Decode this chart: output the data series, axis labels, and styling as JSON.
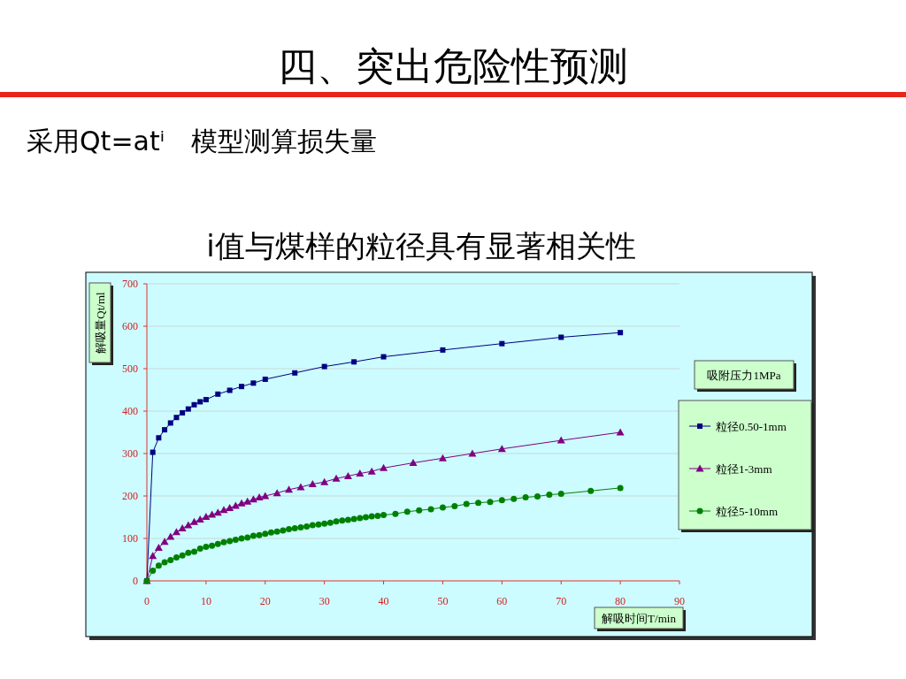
{
  "chart_data": {
    "type": "line",
    "title": "四、突出危险性预测",
    "subtitle": "采用Qt=atⁱ　模型测算损失量",
    "annotations": [
      "i值与煤样的粒径具有显著相关性"
    ],
    "xlabel": "解吸时间T/min",
    "ylabel": "解吸量Qt/ml",
    "legend_title": "吸附压力1MPa",
    "xlim": [
      0,
      90
    ],
    "ylim": [
      0,
      700
    ],
    "xticks": [
      0,
      10,
      20,
      30,
      40,
      50,
      60,
      70,
      80,
      90
    ],
    "yticks": [
      0,
      100,
      200,
      300,
      400,
      500,
      600,
      700
    ],
    "grid": "y",
    "legend": "right",
    "line_style": "solid",
    "series": [
      {
        "name": "粒径0.50-1mm",
        "color": "#000080",
        "marker": "square",
        "x": [
          0,
          1,
          2,
          3,
          4,
          5,
          6,
          7,
          8,
          9,
          10,
          12,
          14,
          16,
          18,
          20,
          25,
          30,
          35,
          40,
          50,
          60,
          70,
          80
        ],
        "values": [
          0,
          303,
          337,
          356,
          372,
          385,
          396,
          405,
          415,
          422,
          427,
          440,
          449,
          458,
          466,
          475,
          490,
          505,
          516,
          528,
          544,
          559,
          574,
          585
        ]
      },
      {
        "name": "粒径1-3mm",
        "color": "#800080",
        "marker": "triangle",
        "x": [
          0,
          1,
          2,
          3,
          4,
          5,
          6,
          7,
          8,
          9,
          10,
          11,
          12,
          13,
          14,
          15,
          16,
          17,
          18,
          19,
          20,
          22,
          24,
          26,
          28,
          30,
          32,
          34,
          36,
          38,
          40,
          45,
          50,
          55,
          60,
          70,
          80
        ],
        "values": [
          0,
          59,
          78,
          92,
          104,
          115,
          124,
          131,
          139,
          145,
          151,
          156,
          161,
          167,
          172,
          177,
          183,
          187,
          192,
          197,
          200,
          207,
          215,
          221,
          228,
          233,
          241,
          247,
          253,
          258,
          266,
          278,
          289,
          300,
          311,
          331,
          350
        ]
      },
      {
        "name": "粒径5-10mm",
        "color": "#008000",
        "marker": "circle",
        "x": [
          0,
          1,
          2,
          3,
          4,
          5,
          6,
          7,
          8,
          9,
          10,
          11,
          12,
          13,
          14,
          15,
          16,
          17,
          18,
          19,
          20,
          21,
          22,
          23,
          24,
          25,
          26,
          27,
          28,
          29,
          30,
          31,
          32,
          33,
          34,
          35,
          36,
          37,
          38,
          39,
          40,
          42,
          44,
          46,
          48,
          50,
          52,
          54,
          56,
          58,
          60,
          62,
          64,
          66,
          68,
          70,
          75,
          80
        ],
        "values": [
          0,
          24,
          36,
          44,
          49,
          55,
          60,
          66,
          69,
          76,
          80,
          83,
          87,
          91,
          94,
          97,
          100,
          102,
          106,
          108,
          111,
          114,
          116,
          119,
          122,
          124,
          126,
          128,
          131,
          133,
          135,
          137,
          140,
          142,
          144,
          146,
          148,
          150,
          152,
          153,
          155,
          158,
          163,
          166,
          169,
          173,
          176,
          181,
          184,
          186,
          190,
          193,
          197,
          199,
          203,
          205,
          212,
          219
        ]
      }
    ]
  }
}
